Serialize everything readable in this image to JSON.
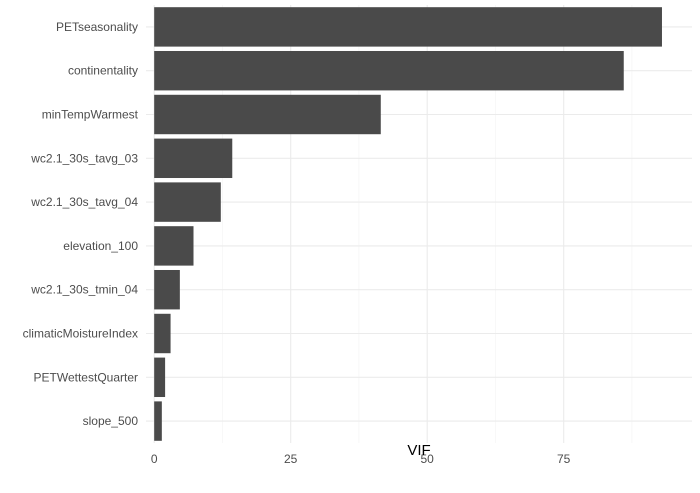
{
  "chart_data": {
    "type": "bar",
    "orientation": "horizontal",
    "categories": [
      "PETseasonality",
      "continentality",
      "minTempWarmest",
      "wc2.1_30s_tavg_03",
      "wc2.1_30s_tavg_04",
      "elevation_100",
      "wc2.1_30s_tmin_04",
      "climaticMoistureIndex",
      "PETWettestQuarter",
      "slope_500"
    ],
    "values": [
      93.0,
      86.0,
      41.5,
      14.3,
      12.2,
      7.2,
      4.7,
      3.0,
      2.0,
      1.4
    ],
    "xlabel": "VIF",
    "ylabel": "",
    "xlim": [
      -1.5,
      98.5
    ],
    "xticks": [
      0,
      25,
      50,
      75
    ],
    "xtick_labels": [
      "0",
      "25",
      "50",
      "75"
    ],
    "grid": true,
    "bar_color": "#4a4a4a",
    "grid_color": "#ebebeb"
  }
}
